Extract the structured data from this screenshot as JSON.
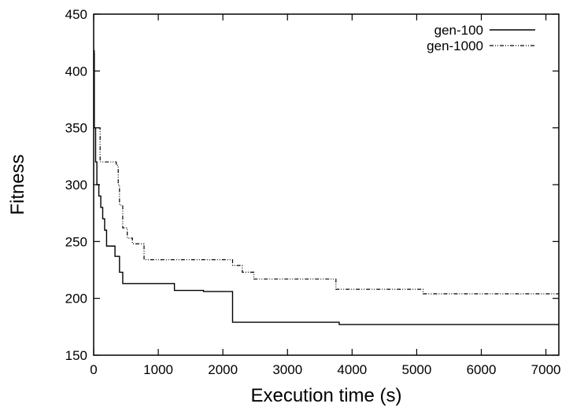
{
  "chart_data": {
    "type": "line",
    "xlabel": "Execution time (s)",
    "ylabel": "Fitness",
    "xlim": [
      0,
      7200
    ],
    "ylim": [
      150,
      450
    ],
    "xticks": [
      0,
      1000,
      2000,
      3000,
      4000,
      5000,
      6000,
      7000
    ],
    "yticks": [
      150,
      200,
      250,
      300,
      350,
      400,
      450
    ],
    "grid": false,
    "legend_position": "top-right",
    "series": [
      {
        "name": "gen-100",
        "style": "solid",
        "color": "#000000",
        "step": true,
        "points": [
          [
            0,
            415
          ],
          [
            10,
            350
          ],
          [
            30,
            320
          ],
          [
            50,
            300
          ],
          [
            80,
            290
          ],
          [
            110,
            280
          ],
          [
            140,
            270
          ],
          [
            170,
            260
          ],
          [
            200,
            246
          ],
          [
            330,
            237
          ],
          [
            400,
            223
          ],
          [
            450,
            213
          ],
          [
            1250,
            207
          ],
          [
            1700,
            206
          ],
          [
            2150,
            179
          ],
          [
            3800,
            177
          ],
          [
            7200,
            177
          ]
        ]
      },
      {
        "name": "gen-1000",
        "style": "dash-dot-dot",
        "color": "#000000",
        "step": true,
        "points": [
          [
            0,
            418
          ],
          [
            10,
            350
          ],
          [
            100,
            320
          ],
          [
            350,
            317
          ],
          [
            380,
            300
          ],
          [
            400,
            282
          ],
          [
            450,
            262
          ],
          [
            520,
            253
          ],
          [
            600,
            248
          ],
          [
            780,
            234
          ],
          [
            2150,
            229
          ],
          [
            2300,
            223
          ],
          [
            2480,
            217
          ],
          [
            3750,
            208
          ],
          [
            5100,
            204
          ],
          [
            7200,
            204
          ]
        ]
      }
    ]
  }
}
